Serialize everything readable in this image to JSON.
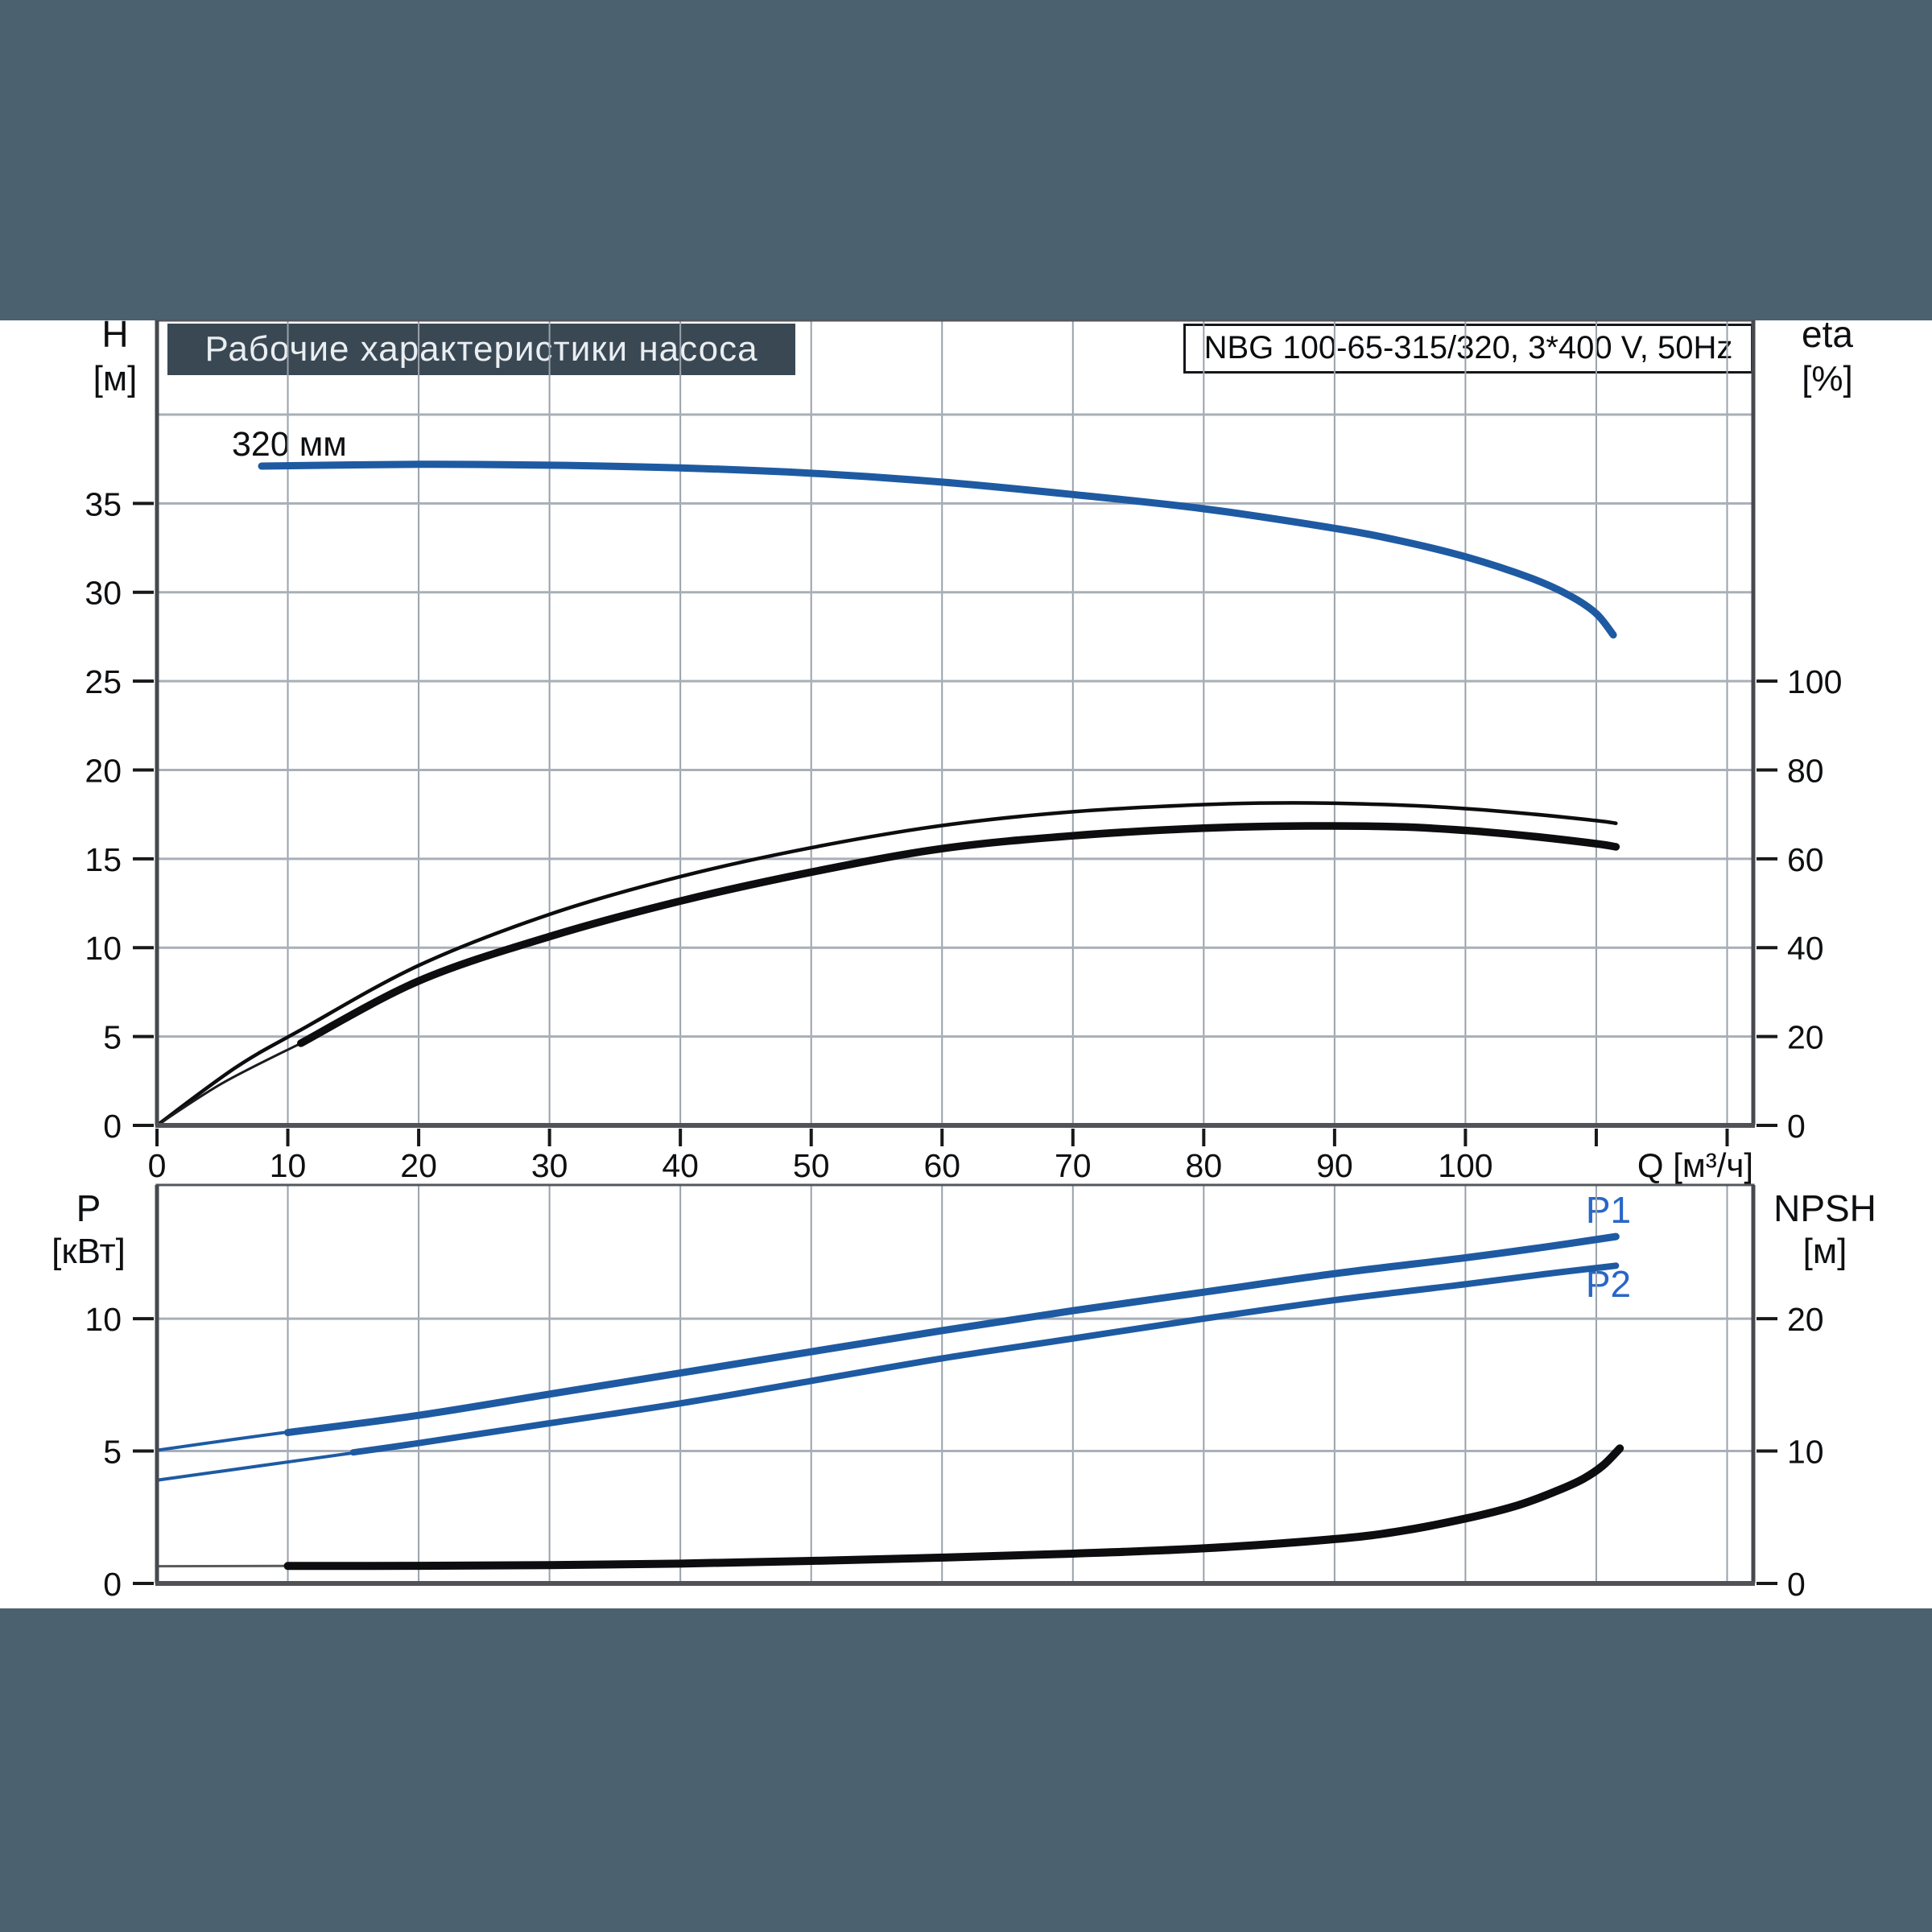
{
  "header": {
    "title": "Рабочие характеристики насоса",
    "pump_type": "NBG 100-65-315/320, 3*400 V, 50Hz"
  },
  "labels": {
    "h": "H",
    "h_unit": "[м]",
    "eta": "eta",
    "eta_unit": "[%]",
    "p": "P",
    "p_unit": "[кВт]",
    "npsh": "NPSH",
    "npsh_unit": "[м]",
    "curve": "320 мм",
    "p1": "P1",
    "p2": "P2"
  },
  "colors": {
    "band": "#4c6170",
    "title_box": "#3a4854",
    "curve_blue": "#1e5aa2",
    "label_blue": "#2a66c8",
    "black": "#0d0d0f",
    "grid_vertical": "#9aa1ab",
    "grid_horizontal": "#a8afb8",
    "border": "#54575c"
  },
  "chart_data": [
    {
      "type": "line",
      "title": "Рабочие характеристики насоса",
      "subtitle": "NBG 100-65-315/320, 3*400 V, 50Hz",
      "x_axis": {
        "label": "Q [м³/ч]",
        "min": 0,
        "max": 122,
        "grid_step": 10,
        "tick_marks": [
          0,
          10,
          20,
          30,
          40,
          50,
          60,
          70,
          80,
          90,
          100,
          110,
          120
        ],
        "tick_labels": [
          0,
          10,
          20,
          30,
          40,
          50,
          60,
          70,
          80,
          90,
          100
        ]
      },
      "y_left": {
        "label": "H [м]",
        "min": 0,
        "max": 45.3,
        "grid": [
          5,
          10,
          15,
          20,
          25,
          30,
          35,
          40
        ],
        "tick_labels": [
          0,
          5,
          10,
          15,
          20,
          25,
          30,
          35
        ]
      },
      "y_right": {
        "label": "eta [%]",
        "min": 0,
        "max": 181.2,
        "tick_labels": [
          0,
          20,
          40,
          60,
          80,
          100
        ]
      },
      "legend": [
        "320 мм"
      ],
      "series": [
        {
          "name": "head-320mm",
          "axis": "left",
          "unit": "м",
          "color": "#1e5aa2",
          "width": 9,
          "smooth": true,
          "points": [
            [
              8,
              37.1
            ],
            [
              20,
              37.2
            ],
            [
              30,
              37.15
            ],
            [
              40,
              37.0
            ],
            [
              50,
              36.7
            ],
            [
              60,
              36.2
            ],
            [
              70,
              35.5
            ],
            [
              80,
              34.7
            ],
            [
              90,
              33.6
            ],
            [
              95,
              32.9
            ],
            [
              100,
              32.0
            ],
            [
              105,
              30.8
            ],
            [
              108,
              29.8
            ],
            [
              110,
              28.8
            ],
            [
              111.3,
              27.6
            ]
          ]
        },
        {
          "name": "eta-upper-thin",
          "axis": "right",
          "unit": "%",
          "color": "#0d0d0f",
          "width": 4.5,
          "smooth": true,
          "points": [
            [
              0,
              0
            ],
            [
              6,
              13
            ],
            [
              11,
              21.5
            ],
            [
              20,
              36
            ],
            [
              30,
              47.5
            ],
            [
              40,
              56
            ],
            [
              50,
              62.5
            ],
            [
              60,
              67.5
            ],
            [
              70,
              70.6
            ],
            [
              80,
              72.2
            ],
            [
              87,
              72.6
            ],
            [
              95,
              72.1
            ],
            [
              100,
              71.3
            ],
            [
              105,
              70.1
            ],
            [
              110,
              68.6
            ],
            [
              111.5,
              68.0
            ]
          ]
        },
        {
          "name": "eta-lower-leadin",
          "axis": "right",
          "unit": "%",
          "color": "#1a1b1e",
          "width": 3,
          "smooth": true,
          "points": [
            [
              0,
              0
            ],
            [
              5,
              9.5
            ],
            [
              11,
              18.5
            ]
          ]
        },
        {
          "name": "eta-lower-thick",
          "axis": "right",
          "unit": "%",
          "color": "#0d0d0f",
          "width": 9.5,
          "smooth": true,
          "points": [
            [
              11,
              18.5
            ],
            [
              20,
              32.5
            ],
            [
              30,
              42.5
            ],
            [
              40,
              50.5
            ],
            [
              50,
              57
            ],
            [
              60,
              62.3
            ],
            [
              70,
              65.2
            ],
            [
              80,
              66.9
            ],
            [
              88,
              67.4
            ],
            [
              95,
              67.2
            ],
            [
              100,
              66.4
            ],
            [
              105,
              65.1
            ],
            [
              110,
              63.4
            ],
            [
              111.5,
              62.7
            ]
          ]
        }
      ]
    },
    {
      "type": "line",
      "x_axis": {
        "min": 0,
        "max": 122,
        "grid_step": 10
      },
      "y_left": {
        "label": "P [кВт]",
        "min": 0,
        "max": 15.05,
        "grid": [
          5,
          10
        ],
        "tick_labels": [
          0,
          5,
          10
        ]
      },
      "y_right": {
        "label": "NPSH [м]",
        "min": 0,
        "max": 30.1,
        "tick_labels": [
          0,
          10,
          20
        ]
      },
      "series": [
        {
          "name": "P1-leadin-thin",
          "axis": "left",
          "unit": "кВт",
          "color": "#1e5aa2",
          "width": 4,
          "smooth": true,
          "points": [
            [
              0,
              5.03
            ],
            [
              6,
              5.45
            ],
            [
              12,
              5.85
            ]
          ]
        },
        {
          "name": "P1",
          "axis": "left",
          "unit": "кВт",
          "color": "#1e5aa2",
          "width": 9,
          "smooth": true,
          "points": [
            [
              10,
              5.7
            ],
            [
              20,
              6.35
            ],
            [
              30,
              7.15
            ],
            [
              40,
              7.95
            ],
            [
              50,
              8.75
            ],
            [
              60,
              9.55
            ],
            [
              70,
              10.3
            ],
            [
              80,
              11.0
            ],
            [
              90,
              11.7
            ],
            [
              100,
              12.3
            ],
            [
              106,
              12.7
            ],
            [
              111.5,
              13.1
            ]
          ]
        },
        {
          "name": "P2-leadin-thin",
          "axis": "left",
          "unit": "кВт",
          "color": "#1e5aa2",
          "width": 4,
          "smooth": true,
          "points": [
            [
              0,
              3.9
            ],
            [
              8,
              4.45
            ],
            [
              16,
              5.0
            ]
          ]
        },
        {
          "name": "P2",
          "axis": "left",
          "unit": "кВт",
          "color": "#1e5aa2",
          "width": 8,
          "smooth": true,
          "points": [
            [
              15,
              4.95
            ],
            [
              20,
              5.3
            ],
            [
              30,
              6.05
            ],
            [
              40,
              6.8
            ],
            [
              50,
              7.65
            ],
            [
              60,
              8.5
            ],
            [
              70,
              9.25
            ],
            [
              80,
              10.0
            ],
            [
              90,
              10.7
            ],
            [
              100,
              11.3
            ],
            [
              106,
              11.68
            ],
            [
              111.5,
              12.0
            ]
          ]
        },
        {
          "name": "NPSH-leadin-thin",
          "axis": "right",
          "unit": "м",
          "color": "#5a5a5e",
          "width": 3,
          "smooth": false,
          "points": [
            [
              0,
              1.3
            ],
            [
              10,
              1.32
            ]
          ]
        },
        {
          "name": "NPSH",
          "axis": "right",
          "unit": "м",
          "color": "#0d0d0f",
          "width": 10,
          "smooth": true,
          "points": [
            [
              10,
              1.32
            ],
            [
              20,
              1.33
            ],
            [
              30,
              1.38
            ],
            [
              40,
              1.5
            ],
            [
              50,
              1.7
            ],
            [
              60,
              1.95
            ],
            [
              70,
              2.25
            ],
            [
              80,
              2.65
            ],
            [
              90,
              3.35
            ],
            [
              95,
              3.95
            ],
            [
              100,
              4.9
            ],
            [
              104,
              5.9
            ],
            [
              107,
              7.0
            ],
            [
              109,
              7.9
            ],
            [
              110.5,
              8.9
            ],
            [
              111.8,
              10.2
            ]
          ]
        }
      ]
    }
  ]
}
